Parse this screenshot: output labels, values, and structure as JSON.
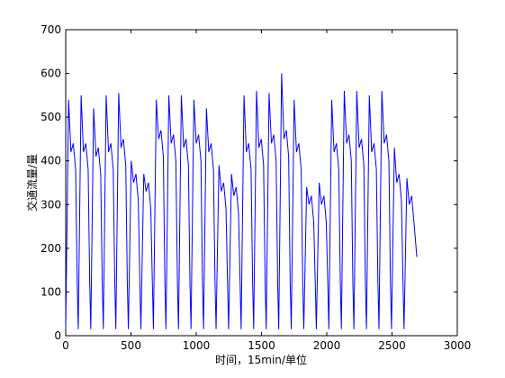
{
  "chart_data": {
    "type": "line",
    "x_label": "时间，15min/单位",
    "y_label": "交通流量/量",
    "color": "#0000ff",
    "xlim": [
      0,
      3000
    ],
    "ylim": [
      0,
      700
    ],
    "xticks": [
      0,
      500,
      1000,
      1500,
      2000,
      2500,
      3000
    ],
    "yticks": [
      0,
      100,
      200,
      300,
      400,
      500,
      600,
      700
    ],
    "x": [
      0,
      22,
      40,
      58,
      76,
      88,
      96,
      118,
      136,
      154,
      172,
      184,
      192,
      214,
      232,
      250,
      268,
      280,
      288,
      310,
      328,
      346,
      364,
      376,
      384,
      406,
      424,
      442,
      460,
      472,
      480,
      502,
      520,
      538,
      556,
      568,
      576,
      598,
      616,
      634,
      652,
      664,
      672,
      694,
      712,
      730,
      748,
      760,
      768,
      790,
      808,
      826,
      844,
      856,
      864,
      886,
      904,
      922,
      940,
      952,
      960,
      982,
      1000,
      1018,
      1036,
      1048,
      1056,
      1078,
      1096,
      1114,
      1132,
      1144,
      1152,
      1174,
      1192,
      1210,
      1228,
      1240,
      1248,
      1270,
      1288,
      1306,
      1324,
      1336,
      1344,
      1366,
      1384,
      1402,
      1420,
      1432,
      1440,
      1462,
      1480,
      1498,
      1516,
      1528,
      1536,
      1558,
      1576,
      1594,
      1612,
      1624,
      1632,
      1654,
      1672,
      1690,
      1708,
      1720,
      1728,
      1750,
      1768,
      1786,
      1804,
      1816,
      1824,
      1846,
      1864,
      1882,
      1900,
      1912,
      1920,
      1942,
      1960,
      1978,
      1996,
      2008,
      2016,
      2038,
      2056,
      2074,
      2092,
      2104,
      2112,
      2134,
      2152,
      2170,
      2188,
      2200,
      2208,
      2230,
      2248,
      2266,
      2284,
      2296,
      2304,
      2326,
      2344,
      2362,
      2380,
      2392,
      2400,
      2422,
      2440,
      2458,
      2476,
      2488,
      2496,
      2518,
      2536,
      2554,
      2572,
      2584,
      2592,
      2614,
      2632,
      2650,
      2668,
      2690
    ],
    "values": [
      15,
      540,
      420,
      440,
      380,
      120,
      15,
      550,
      420,
      440,
      380,
      120,
      15,
      520,
      410,
      430,
      370,
      120,
      15,
      550,
      420,
      440,
      380,
      120,
      15,
      555,
      430,
      450,
      390,
      120,
      15,
      400,
      350,
      370,
      310,
      120,
      15,
      370,
      330,
      350,
      290,
      120,
      15,
      540,
      450,
      470,
      410,
      120,
      15,
      550,
      440,
      460,
      400,
      120,
      15,
      550,
      430,
      450,
      390,
      120,
      15,
      540,
      440,
      460,
      400,
      120,
      15,
      520,
      420,
      440,
      380,
      120,
      15,
      390,
      330,
      350,
      290,
      120,
      15,
      370,
      320,
      340,
      280,
      120,
      15,
      550,
      420,
      440,
      380,
      120,
      15,
      560,
      430,
      450,
      390,
      120,
      15,
      555,
      440,
      460,
      400,
      120,
      15,
      600,
      450,
      470,
      410,
      120,
      15,
      540,
      420,
      440,
      380,
      120,
      15,
      340,
      300,
      320,
      260,
      120,
      15,
      350,
      300,
      320,
      260,
      120,
      15,
      540,
      420,
      440,
      380,
      120,
      15,
      560,
      440,
      460,
      400,
      120,
      15,
      560,
      430,
      450,
      390,
      120,
      15,
      550,
      420,
      440,
      380,
      120,
      15,
      560,
      440,
      460,
      400,
      120,
      15,
      430,
      350,
      370,
      310,
      120,
      15,
      360,
      300,
      320,
      260,
      180
    ]
  }
}
